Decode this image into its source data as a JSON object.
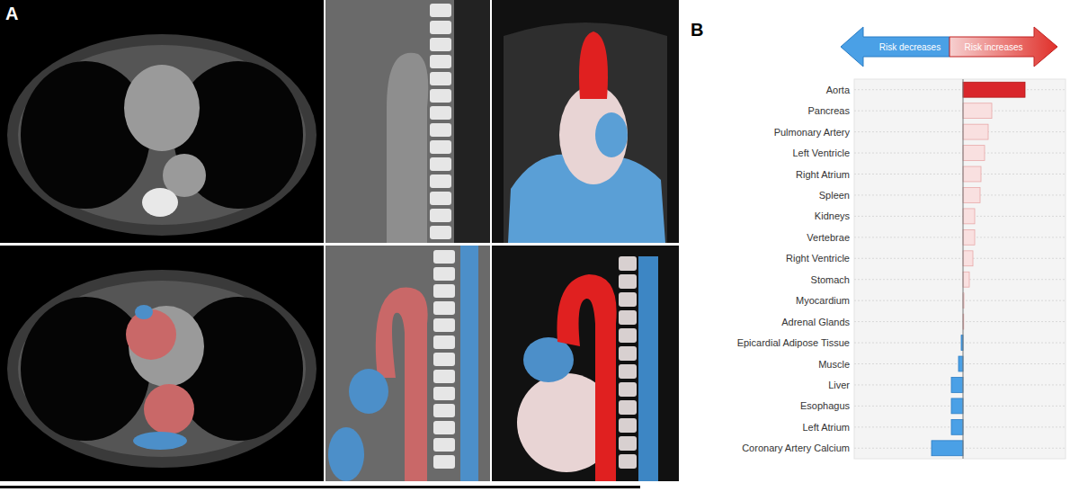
{
  "panel_labels": {
    "a": "A",
    "b": "B"
  },
  "chart_data": {
    "type": "bar",
    "orientation": "horizontal",
    "annotations": [
      "Risk decreases",
      "Risk increases"
    ],
    "categories": [
      "Aorta",
      "Pancreas",
      "Pulmonary Artery",
      "Left Ventricle",
      "Right Atrium",
      "Spleen",
      "Kidneys",
      "Vertebrae",
      "Right Ventricle",
      "Stomach",
      "Myocardium",
      "Adrenal Glands",
      "Epicardial Adipose Tissue",
      "Muscle",
      "Liver",
      "Esophagus",
      "Left Atrium",
      "Coronary Artery Calcium"
    ],
    "values": [
      69,
      32,
      28,
      24,
      20,
      19,
      13,
      13,
      11,
      7,
      1,
      0.5,
      -2,
      -5,
      -13,
      -13,
      -13,
      -35
    ],
    "colors": [
      "#d9262b",
      "#f9e0e0",
      "#f9e0e0",
      "#f9e0e0",
      "#f9e0e0",
      "#f9e0e0",
      "#f9e0e0",
      "#f9e0e0",
      "#f9e0e0",
      "#f9e0e0",
      "#f9e0e0",
      "#f9e0e0",
      "#4aa0e6",
      "#4aa0e6",
      "#4aa0e6",
      "#4aa0e6",
      "#4aa0e6",
      "#4aa0e6"
    ],
    "xlim": [
      -121,
      114
    ],
    "tick_labels": "y",
    "grid": true
  }
}
